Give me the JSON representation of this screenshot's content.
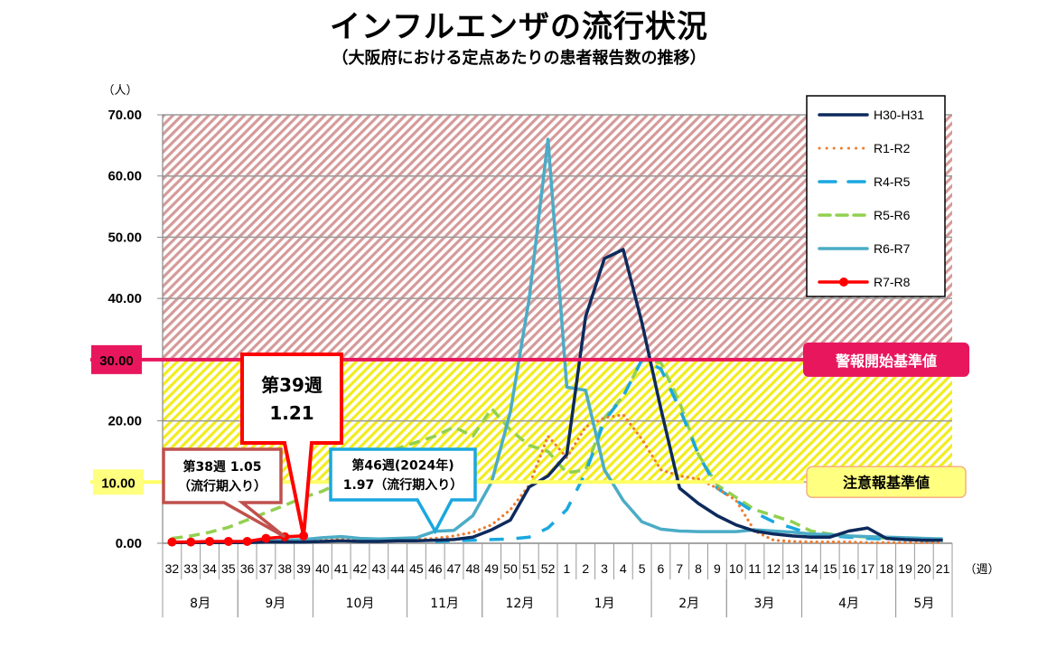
{
  "header": {
    "title": "インフルエンザの流行状況",
    "subtitle": "（大阪府における定点あたりの患者報告数の推移）"
  },
  "chart_data": {
    "type": "line",
    "title": "インフルエンザの流行状況",
    "subtitle": "（大阪府における定点あたりの患者報告数の推移）",
    "ylabel": "（人）",
    "xlabel": "（週）",
    "ylim": [
      0,
      70
    ],
    "yticks": [
      "0.00",
      "10.00",
      "20.00",
      "30.00",
      "40.00",
      "50.00",
      "60.00",
      "70.00"
    ],
    "ytick_values": [
      0,
      10,
      20,
      30,
      40,
      50,
      60,
      70
    ],
    "grid": true,
    "legend_position": "top-right",
    "categories": [
      "32",
      "33",
      "34",
      "35",
      "36",
      "37",
      "38",
      "39",
      "40",
      "41",
      "42",
      "43",
      "44",
      "45",
      "46",
      "47",
      "48",
      "49",
      "50",
      "51",
      "52",
      "1",
      "2",
      "3",
      "4",
      "5",
      "6",
      "7",
      "8",
      "9",
      "10",
      "11",
      "12",
      "13",
      "14",
      "15",
      "16",
      "17",
      "18",
      "19",
      "20",
      "21"
    ],
    "months": [
      {
        "label": "8月",
        "start": 0,
        "end": 4
      },
      {
        "label": "9月",
        "start": 4,
        "end": 8
      },
      {
        "label": "10月",
        "start": 8,
        "end": 13
      },
      {
        "label": "11月",
        "start": 13,
        "end": 17
      },
      {
        "label": "12月",
        "start": 17,
        "end": 21
      },
      {
        "label": "1月",
        "start": 21,
        "end": 26
      },
      {
        "label": "2月",
        "start": 26,
        "end": 30
      },
      {
        "label": "3月",
        "start": 30,
        "end": 34
      },
      {
        "label": "4月",
        "start": 34,
        "end": 39
      },
      {
        "label": "5月",
        "start": 39,
        "end": 42
      }
    ],
    "bands": [
      {
        "name": "warning-zone",
        "from": 30,
        "to": 70,
        "color": "#d9a0a0"
      },
      {
        "name": "caution-zone",
        "from": 10,
        "to": 30,
        "color": "#f5ea2a"
      }
    ],
    "reference_lines": [
      {
        "name": "警報開始基準値",
        "value": 30,
        "color": "#e8175d",
        "label_bg": "#e8175d",
        "label_color": "#ffffff",
        "axis_label": "30.00"
      },
      {
        "name": "注意報基準値",
        "value": 10,
        "color": "#ffff66",
        "label_bg": "#ffff80",
        "label_color": "#000000",
        "axis_label": "10.00"
      }
    ],
    "series": [
      {
        "name": "H30-H31",
        "color": "#0d2a5c",
        "style": "solid",
        "values": [
          0.1,
          0.1,
          0.1,
          0.1,
          0.1,
          0.2,
          0.2,
          0.2,
          0.3,
          0.4,
          0.3,
          0.3,
          0.4,
          0.4,
          0.5,
          0.6,
          1.0,
          2.2,
          3.8,
          9.2,
          11.0,
          14.5,
          37.0,
          46.5,
          48.0,
          36.0,
          22.0,
          9.0,
          6.5,
          4.5,
          3.0,
          2.0,
          1.5,
          1.2,
          1.0,
          1.0,
          2.0,
          2.5,
          0.8,
          0.6,
          0.5,
          0.5
        ]
      },
      {
        "name": "R1-R2",
        "color": "#ed7d31",
        "style": "dotted",
        "values": [
          0.2,
          0.2,
          0.2,
          0.2,
          0.2,
          0.3,
          0.3,
          0.4,
          0.5,
          0.7,
          0.5,
          0.4,
          0.5,
          0.6,
          0.8,
          1.2,
          1.8,
          3.0,
          5.5,
          9.5,
          17.5,
          14.0,
          19.0,
          20.5,
          21.0,
          17.0,
          12.0,
          11.0,
          10.5,
          9.0,
          7.0,
          2.0,
          0.5,
          0.3,
          0.2,
          0.2,
          0.2,
          0.1,
          0.1,
          0.1,
          0.1,
          0.1
        ]
      },
      {
        "name": "R4-R5",
        "color": "#1aa7e0",
        "style": "dashed",
        "values": [
          null,
          null,
          null,
          null,
          null,
          null,
          null,
          null,
          null,
          null,
          null,
          null,
          null,
          null,
          0.3,
          0.4,
          0.5,
          0.6,
          0.7,
          1.0,
          2.5,
          5.5,
          11.5,
          20.0,
          24.0,
          30.0,
          28.5,
          22.0,
          14.5,
          9.0,
          7.0,
          5.0,
          3.5,
          2.5,
          1.5,
          1.2,
          1.0,
          0.8,
          0.7,
          0.6,
          0.5,
          0.4
        ]
      },
      {
        "name": "R5-R6",
        "color": "#92d050",
        "style": "dashed-short",
        "values": [
          0.8,
          1.2,
          1.8,
          2.6,
          3.8,
          5.0,
          6.2,
          7.5,
          8.5,
          10.0,
          12.0,
          14.0,
          15.5,
          16.5,
          17.5,
          19.0,
          17.5,
          22.0,
          18.5,
          16.0,
          15.0,
          11.5,
          12.0,
          20.5,
          24.0,
          30.0,
          29.5,
          23.0,
          14.5,
          9.5,
          7.5,
          5.5,
          4.5,
          3.5,
          2.0,
          1.5,
          1.2,
          1.0,
          0.8,
          0.6,
          0.5,
          0.4
        ]
      },
      {
        "name": "R6-R7",
        "color": "#4bacc6",
        "style": "solid",
        "values": [
          0.1,
          0.1,
          0.2,
          0.2,
          0.3,
          0.4,
          0.5,
          0.6,
          0.9,
          1.1,
          0.8,
          0.7,
          0.8,
          0.9,
          1.97,
          2.1,
          4.5,
          10.0,
          21.5,
          40.0,
          66.0,
          25.5,
          25.0,
          12.0,
          7.0,
          3.5,
          2.3,
          2.0,
          1.9,
          1.9,
          1.9,
          2.2,
          2.0,
          1.8,
          1.5,
          1.4,
          1.2,
          1.1,
          1.0,
          0.9,
          0.8,
          0.7
        ]
      },
      {
        "name": "R7-R8",
        "color": "#ff0000",
        "style": "solid-marker",
        "values": [
          0.2,
          0.2,
          0.3,
          0.3,
          0.3,
          0.8,
          1.05,
          1.21,
          null,
          null,
          null,
          null,
          null,
          null,
          null,
          null,
          null,
          null,
          null,
          null,
          null,
          null,
          null,
          null,
          null,
          null,
          null,
          null,
          null,
          null,
          null,
          null,
          null,
          null,
          null,
          null,
          null,
          null,
          null,
          null,
          null,
          null
        ]
      }
    ],
    "annotations": [
      {
        "name": "week39-callout",
        "lines": [
          "第39週",
          "1.21"
        ],
        "target_index": 7,
        "target_value": 1.21,
        "border": "#ff0000"
      },
      {
        "name": "week38-callout",
        "lines": [
          "第38週 1.05",
          "（流行期入り）"
        ],
        "target_index": 6,
        "target_value": 1.05,
        "border": "#c0504d"
      },
      {
        "name": "week46-callout",
        "lines": [
          "第46週(2024年)",
          "1.97（流行期入り）"
        ],
        "target_index": 14,
        "target_value": 1.97,
        "border": "#1aa7e0"
      }
    ]
  }
}
